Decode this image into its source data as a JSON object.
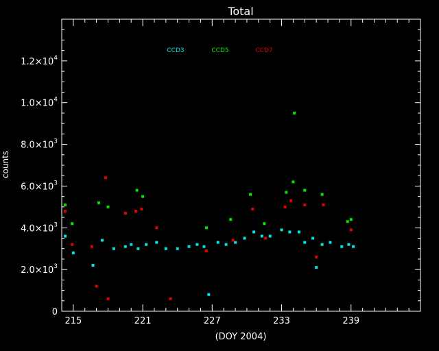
{
  "chart_data": {
    "type": "scatter",
    "title": "Total",
    "xlabel": "(DOY 2004)",
    "ylabel": "counts",
    "xlim": [
      214,
      245
    ],
    "ylim": [
      0,
      14000
    ],
    "grid": false,
    "legend_placement": "top-center",
    "x_ticks": [
      {
        "value": 215,
        "label": "215"
      },
      {
        "value": 221,
        "label": "221"
      },
      {
        "value": 227,
        "label": "227"
      },
      {
        "value": 233,
        "label": "233"
      },
      {
        "value": 239,
        "label": "239"
      }
    ],
    "y_ticks": [
      {
        "value": 0,
        "mant": "0",
        "exp": ""
      },
      {
        "value": 2000,
        "mant": "2.0×10",
        "exp": "3"
      },
      {
        "value": 4000,
        "mant": "4.0×10",
        "exp": "3"
      },
      {
        "value": 6000,
        "mant": "6.0×10",
        "exp": "3"
      },
      {
        "value": 8000,
        "mant": "8.0×10",
        "exp": "3"
      },
      {
        "value": 10000,
        "mant": "1.0×10",
        "exp": "4"
      },
      {
        "value": 12000,
        "mant": "1.2×10",
        "exp": "4"
      }
    ],
    "series": [
      {
        "name": "CCD3",
        "color": "#00e5e5",
        "points": [
          [
            214.3,
            3600
          ],
          [
            215.0,
            2800
          ],
          [
            216.7,
            2200
          ],
          [
            217.5,
            3400
          ],
          [
            218.5,
            3000
          ],
          [
            219.5,
            3100
          ],
          [
            220.0,
            3200
          ],
          [
            220.6,
            3000
          ],
          [
            221.3,
            3200
          ],
          [
            222.2,
            3300
          ],
          [
            223.0,
            3000
          ],
          [
            224.0,
            3000
          ],
          [
            225.0,
            3100
          ],
          [
            225.7,
            3200
          ],
          [
            226.3,
            3100
          ],
          [
            226.7,
            800
          ],
          [
            227.5,
            3300
          ],
          [
            228.2,
            3200
          ],
          [
            229.0,
            3300
          ],
          [
            229.8,
            3500
          ],
          [
            230.6,
            3800
          ],
          [
            231.3,
            3600
          ],
          [
            232.0,
            3600
          ],
          [
            233.0,
            3900
          ],
          [
            233.7,
            3800
          ],
          [
            234.5,
            3800
          ],
          [
            235.0,
            3300
          ],
          [
            235.7,
            3500
          ],
          [
            236.0,
            2100
          ],
          [
            236.5,
            3200
          ],
          [
            237.2,
            3300
          ],
          [
            238.2,
            3100
          ],
          [
            238.8,
            3200
          ],
          [
            239.2,
            3100
          ]
        ]
      },
      {
        "name": "CCD5",
        "color": "#00e500",
        "points": [
          [
            214.3,
            5100
          ],
          [
            214.9,
            4200
          ],
          [
            217.2,
            5200
          ],
          [
            218.0,
            5000
          ],
          [
            219.5,
            4700
          ],
          [
            220.5,
            5800
          ],
          [
            221.0,
            5500
          ],
          [
            226.5,
            4000
          ],
          [
            228.6,
            4400
          ],
          [
            230.3,
            5600
          ],
          [
            231.5,
            4200
          ],
          [
            233.4,
            5700
          ],
          [
            234.0,
            6200
          ],
          [
            234.1,
            9500
          ],
          [
            235.0,
            5800
          ],
          [
            236.5,
            5600
          ],
          [
            238.7,
            4300
          ],
          [
            239.0,
            4400
          ]
        ]
      },
      {
        "name": "CCD7",
        "color": "#e50000",
        "points": [
          [
            214.3,
            4800
          ],
          [
            214.9,
            3200
          ],
          [
            216.6,
            3100
          ],
          [
            217.0,
            1200
          ],
          [
            217.8,
            6400
          ],
          [
            218.0,
            600
          ],
          [
            219.5,
            4700
          ],
          [
            220.4,
            4800
          ],
          [
            220.9,
            4900
          ],
          [
            222.2,
            4000
          ],
          [
            223.4,
            600
          ],
          [
            226.5,
            2900
          ],
          [
            228.8,
            3400
          ],
          [
            230.5,
            4900
          ],
          [
            231.6,
            3500
          ],
          [
            233.3,
            5000
          ],
          [
            233.8,
            5300
          ],
          [
            235.0,
            5100
          ],
          [
            236.0,
            2600
          ],
          [
            236.6,
            5100
          ],
          [
            239.0,
            3900
          ]
        ]
      }
    ]
  }
}
